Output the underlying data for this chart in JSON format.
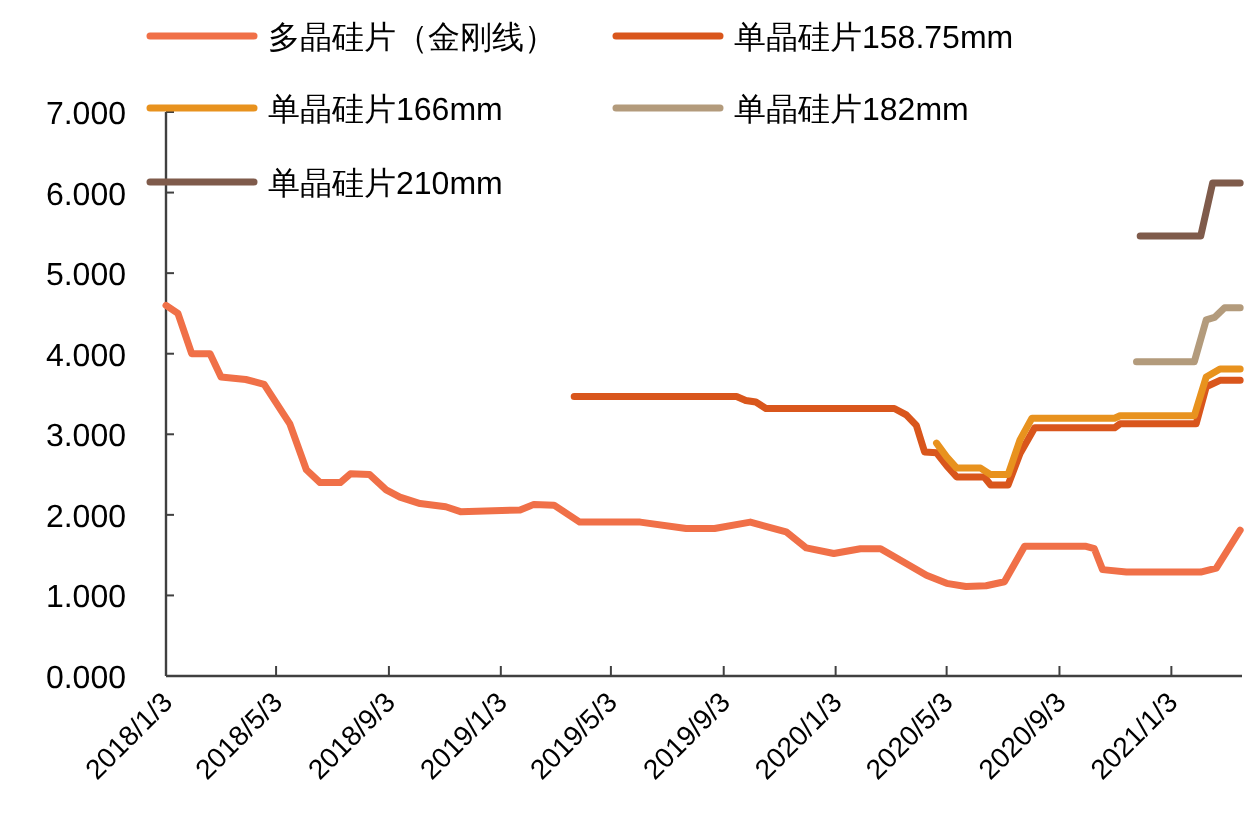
{
  "chart_data": {
    "type": "line",
    "legend": "top",
    "grid": false,
    "marker": "none",
    "line_style": "solid",
    "xlim": [
      "2018-01-03",
      "2021-03-21"
    ],
    "xticks": [
      {
        "value": "2018-01-03",
        "label": "2018/1/3"
      },
      {
        "value": "2018-05-03",
        "label": "2018/5/3"
      },
      {
        "value": "2018-09-03",
        "label": "2018/9/3"
      },
      {
        "value": "2019-01-03",
        "label": "2019/1/3"
      },
      {
        "value": "2019-05-03",
        "label": "2019/5/3"
      },
      {
        "value": "2019-09-03",
        "label": "2019/9/3"
      },
      {
        "value": "2020-01-03",
        "label": "2020/1/3"
      },
      {
        "value": "2020-05-03",
        "label": "2020/5/3"
      },
      {
        "value": "2020-09-03",
        "label": "2020/9/3"
      },
      {
        "value": "2021-01-03",
        "label": "2021/1/3"
      }
    ],
    "ylim": [
      0,
      7
    ],
    "yticks": [
      {
        "value": 0,
        "label": "0.000"
      },
      {
        "value": 1,
        "label": "1.000"
      },
      {
        "value": 2,
        "label": "2.000"
      },
      {
        "value": 3,
        "label": "3.000"
      },
      {
        "value": 4,
        "label": "4.000"
      },
      {
        "value": 5,
        "label": "5.000"
      },
      {
        "value": 6,
        "label": "6.000"
      },
      {
        "value": 7,
        "label": "7.000"
      }
    ],
    "series": [
      {
        "name": "多晶硅片（金刚线）",
        "color": "#f07048",
        "x": [
          "2018-01-03",
          "2018-01-16",
          "2018-01-31",
          "2018-02-20",
          "2018-03-04",
          "2018-03-31",
          "2018-04-20",
          "2018-05-18",
          "2018-06-05",
          "2018-06-20",
          "2018-07-12",
          "2018-07-23",
          "2018-08-13",
          "2018-08-31",
          "2018-09-15",
          "2018-10-07",
          "2018-11-04",
          "2018-11-20",
          "2019-01-24",
          "2019-02-08",
          "2019-03-02",
          "2019-03-30",
          "2019-06-04",
          "2019-07-24",
          "2019-08-24",
          "2019-10-02",
          "2019-11-10",
          "2019-12-02",
          "2020-01-01",
          "2020-01-30",
          "2020-02-21",
          "2020-04-11",
          "2020-05-03",
          "2020-05-24",
          "2020-06-15",
          "2020-07-05",
          "2020-07-27",
          "2020-10-02",
          "2020-10-11",
          "2020-10-20",
          "2020-11-15",
          "2021-02-04",
          "2021-02-21",
          "2021-03-19"
        ],
        "values": [
          4.6,
          4.5,
          4.0,
          4.0,
          3.71,
          3.68,
          3.62,
          3.13,
          2.56,
          2.4,
          2.4,
          2.51,
          2.5,
          2.31,
          2.22,
          2.14,
          2.1,
          2.04,
          2.06,
          2.13,
          2.12,
          1.91,
          1.91,
          1.83,
          1.83,
          1.91,
          1.79,
          1.59,
          1.52,
          1.58,
          1.58,
          1.25,
          1.15,
          1.11,
          1.12,
          1.17,
          1.61,
          1.61,
          1.58,
          1.32,
          1.29,
          1.29,
          1.34,
          1.81
        ]
      },
      {
        "name": "单晶硅片158.75mm",
        "color": "#d9561c",
        "x": [
          "2019-03-24",
          "2019-09-17",
          "2019-09-27",
          "2019-10-08",
          "2019-10-19",
          "2020-03-07",
          "2020-03-20",
          "2020-03-31",
          "2020-04-09",
          "2020-04-22",
          "2020-05-03",
          "2020-05-14",
          "2020-06-13",
          "2020-06-20",
          "2020-07-09",
          "2020-07-22",
          "2020-08-07",
          "2020-11-02",
          "2020-11-08",
          "2021-01-30",
          "2021-02-10",
          "2021-02-25",
          "2021-03-19"
        ],
        "values": [
          3.47,
          3.47,
          3.42,
          3.4,
          3.32,
          3.32,
          3.24,
          3.11,
          2.78,
          2.77,
          2.61,
          2.47,
          2.47,
          2.37,
          2.37,
          2.76,
          3.08,
          3.08,
          3.13,
          3.13,
          3.59,
          3.67,
          3.67
        ]
      },
      {
        "name": "单晶硅片166mm",
        "color": "#e8921e",
        "x": [
          "2020-04-22",
          "2020-05-03",
          "2020-05-14",
          "2020-06-09",
          "2020-06-20",
          "2020-07-09",
          "2020-07-22",
          "2020-08-04",
          "2020-11-02",
          "2020-11-08",
          "2021-01-28",
          "2021-02-10",
          "2021-02-25",
          "2021-03-19"
        ],
        "values": [
          2.89,
          2.72,
          2.58,
          2.58,
          2.5,
          2.5,
          2.93,
          3.2,
          3.2,
          3.23,
          3.23,
          3.71,
          3.81,
          3.81
        ]
      },
      {
        "name": "单晶硅片182mm",
        "color": "#b39b7c",
        "x": [
          "2020-11-26",
          "2021-01-28",
          "2021-02-10",
          "2021-02-19",
          "2021-03-02",
          "2021-03-19"
        ],
        "values": [
          3.9,
          3.9,
          4.42,
          4.45,
          4.57,
          4.57
        ]
      },
      {
        "name": "单晶硅片210mm",
        "color": "#7f5b4b",
        "x": [
          "2020-11-30",
          "2021-02-04",
          "2021-02-17",
          "2021-03-19"
        ],
        "values": [
          5.46,
          5.46,
          6.12,
          6.12
        ]
      }
    ]
  }
}
